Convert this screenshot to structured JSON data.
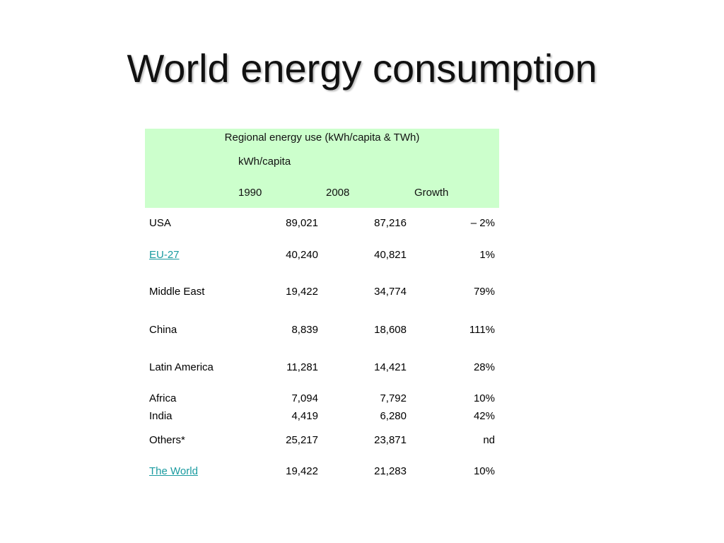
{
  "slide": {
    "title": "World energy consumption"
  },
  "table": {
    "title": "Regional energy use (kWh/capita & TWh)",
    "subtitle": "kWh/capita",
    "columns": [
      "1990",
      "2008",
      "Growth"
    ],
    "rows": [
      {
        "region": "USA",
        "v1990": "89,021",
        "v2008": "87,216",
        "growth": "– 2%",
        "link": false
      },
      {
        "region": "EU-27",
        "v1990": "40,240",
        "v2008": "40,821",
        "growth": "1%",
        "link": true
      },
      {
        "region": "Middle East",
        "v1990": "19,422",
        "v2008": "34,774",
        "growth": "79%",
        "link": false
      },
      {
        "region": "China",
        "v1990": "8,839",
        "v2008": "18,608",
        "growth": "111%",
        "link": false
      },
      {
        "region": "Latin America",
        "v1990": "11,281",
        "v2008": "14,421",
        "growth": "28%",
        "link": false
      },
      {
        "region": "Africa",
        "v1990": "7,094",
        "v2008": "7,792",
        "growth": "10%",
        "link": false
      },
      {
        "region": "India",
        "v1990": "4,419",
        "v2008": "6,280",
        "growth": "42%",
        "link": false
      },
      {
        "region": "Others*",
        "v1990": "25,217",
        "v2008": "23,871",
        "growth": "nd",
        "link": false
      },
      {
        "region": "The World",
        "v1990": "19,422",
        "v2008": "21,283",
        "growth": "10%",
        "link": true
      }
    ],
    "colors": {
      "header_bg": "#ccffcc",
      "link": "#1a9ba0"
    }
  }
}
